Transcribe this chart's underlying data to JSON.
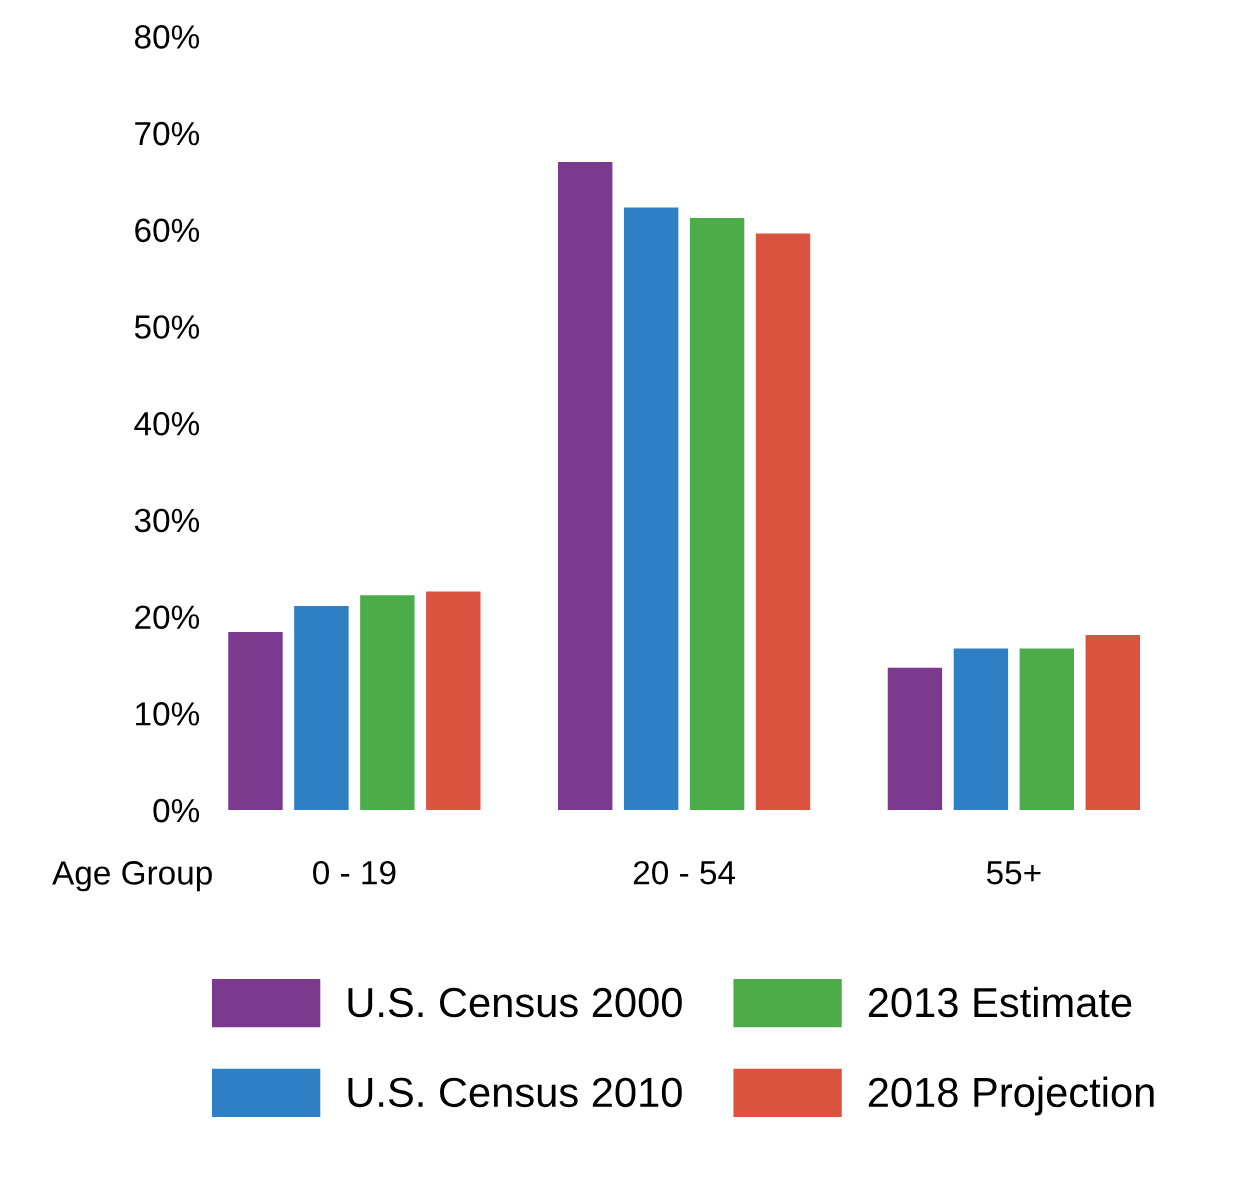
{
  "chart_data": {
    "type": "bar",
    "xlabel": "Age Group",
    "categories": [
      "0 - 19",
      "20 - 54",
      "55+"
    ],
    "series": [
      {
        "name": "U.S. Census 2000",
        "color": "#7b3a8e",
        "values": [
          18.4,
          67.0,
          14.7
        ]
      },
      {
        "name": "U.S. Census 2010",
        "color": "#2e7fc4",
        "values": [
          21.1,
          62.3,
          16.7
        ]
      },
      {
        "name": "2013 Estimate",
        "color": "#4cac4a",
        "values": [
          22.2,
          61.2,
          16.7
        ]
      },
      {
        "name": "2018 Projection",
        "color": "#d9533f",
        "values": [
          22.6,
          59.6,
          18.1
        ]
      }
    ],
    "ylim": [
      0,
      80
    ],
    "yticks": [
      {
        "value": 0,
        "label": "0%"
      },
      {
        "value": 10,
        "label": "10%"
      },
      {
        "value": 20,
        "label": "20%"
      },
      {
        "value": 30,
        "label": "30%"
      },
      {
        "value": 40,
        "label": "40%"
      },
      {
        "value": 50,
        "label": "50%"
      },
      {
        "value": 60,
        "label": "60%"
      },
      {
        "value": 70,
        "label": "70%"
      },
      {
        "value": 80,
        "label": "80%"
      }
    ],
    "grid": false,
    "legend": "bottom"
  }
}
